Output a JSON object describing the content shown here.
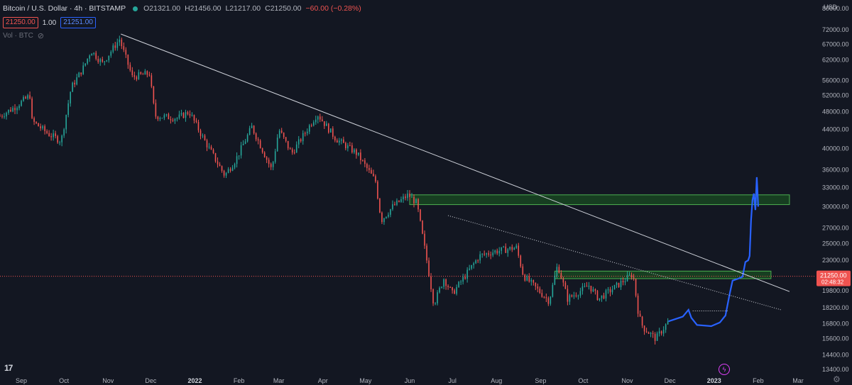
{
  "header": {
    "symbol": "Bitcoin / U.S. Dollar · 4h · BITSTAMP",
    "open": "O21321.00",
    "high": "H21456.00",
    "low": "L21217.00",
    "close": "C21250.00",
    "change": "−60.00 (−0.28%)"
  },
  "trade": {
    "sell": "21250.00",
    "spread": "1.00",
    "buy": "21251.00"
  },
  "volume_label": "Vol · BTC",
  "currency": "USD",
  "last_price_label": {
    "price": "21250.00",
    "countdown": "02:48:32"
  },
  "colors": {
    "background": "#131722",
    "up": "#26a69a",
    "down": "#ef5350",
    "projection": "#2962ff",
    "zone_fill": "#1b5e20",
    "zone_border": "#4caf50",
    "trendline": "#d1d4dc",
    "price_line": "#ef5350"
  },
  "icons": {
    "logo": "tradingview-logo",
    "settings": "gear-icon",
    "replay": "lightning-icon",
    "visibility": "eye-off-icon"
  },
  "chart_data": {
    "type": "candlestick",
    "y_scale": "log",
    "ylim": [
      13400,
      80000
    ],
    "y_ticks": [
      80000,
      72000,
      67000,
      62000,
      56000,
      52000,
      48000,
      44000,
      40000,
      36000,
      33000,
      30000,
      27000,
      25000,
      23000,
      19800,
      18200,
      16800,
      15600,
      14400,
      13400
    ],
    "y_tick_labels": [
      "80000.00",
      "72000.00",
      "67000.00",
      "62000.00",
      "56000.00",
      "52000.00",
      "48000.00",
      "44000.00",
      "40000.00",
      "36000.00",
      "33000.00",
      "30000.00",
      "27000.00",
      "25000.00",
      "23000.00",
      "19800.00",
      "18200.00",
      "16800.00",
      "15600.00",
      "14400.00",
      "13400.00"
    ],
    "x_ticks": [
      {
        "label": "Sep",
        "date": "2021-09-01"
      },
      {
        "label": "Oct",
        "date": "2021-10-01"
      },
      {
        "label": "Nov",
        "date": "2021-11-01"
      },
      {
        "label": "Dec",
        "date": "2021-12-01"
      },
      {
        "label": "2022",
        "date": "2022-01-01"
      },
      {
        "label": "Feb",
        "date": "2022-02-01"
      },
      {
        "label": "Mar",
        "date": "2022-03-01"
      },
      {
        "label": "Apr",
        "date": "2022-04-01"
      },
      {
        "label": "May",
        "date": "2022-05-01"
      },
      {
        "label": "Jun",
        "date": "2022-06-01"
      },
      {
        "label": "Jul",
        "date": "2022-07-01"
      },
      {
        "label": "Aug",
        "date": "2022-08-01"
      },
      {
        "label": "Sep",
        "date": "2022-09-01"
      },
      {
        "label": "Oct",
        "date": "2022-10-01"
      },
      {
        "label": "Nov",
        "date": "2022-11-01"
      },
      {
        "label": "Dec",
        "date": "2022-12-01"
      },
      {
        "label": "2023",
        "date": "2023-01-01"
      },
      {
        "label": "Feb",
        "date": "2023-02-01"
      },
      {
        "label": "Mar",
        "date": "2023-03-01"
      }
    ],
    "xlim": [
      "2021-08-17",
      "2023-03-13"
    ],
    "price_path": [
      [
        "2021-08-17",
        47000
      ],
      [
        "2021-08-27",
        49000
      ],
      [
        "2021-09-07",
        52000
      ],
      [
        "2021-09-08",
        46000
      ],
      [
        "2021-09-20",
        43000
      ],
      [
        "2021-09-29",
        41500
      ],
      [
        "2021-10-06",
        54000
      ],
      [
        "2021-10-15",
        60000
      ],
      [
        "2021-10-20",
        65000
      ],
      [
        "2021-10-28",
        61000
      ],
      [
        "2021-11-09",
        68700
      ],
      [
        "2021-11-18",
        57000
      ],
      [
        "2021-11-30",
        58000
      ],
      [
        "2021-12-04",
        47000
      ],
      [
        "2021-12-20",
        46500
      ],
      [
        "2021-12-28",
        48000
      ],
      [
        "2022-01-07",
        42000
      ],
      [
        "2022-01-22",
        35000
      ],
      [
        "2022-01-30",
        38000
      ],
      [
        "2022-02-10",
        44500
      ],
      [
        "2022-02-24",
        36000
      ],
      [
        "2022-03-01",
        44000
      ],
      [
        "2022-03-10",
        39000
      ],
      [
        "2022-03-28",
        47500
      ],
      [
        "2022-04-10",
        42000
      ],
      [
        "2022-04-25",
        39000
      ],
      [
        "2022-05-08",
        34000
      ],
      [
        "2022-05-12",
        28000
      ],
      [
        "2022-05-20",
        30000
      ],
      [
        "2022-05-31",
        31800
      ],
      [
        "2022-06-06",
        30500
      ],
      [
        "2022-06-13",
        23000
      ],
      [
        "2022-06-18",
        18500
      ],
      [
        "2022-06-25",
        21000
      ],
      [
        "2022-07-01",
        19500
      ],
      [
        "2022-07-20",
        23500
      ],
      [
        "2022-07-30",
        24000
      ],
      [
        "2022-08-15",
        24500
      ],
      [
        "2022-08-20",
        21300
      ],
      [
        "2022-09-07",
        18800
      ],
      [
        "2022-09-13",
        22500
      ],
      [
        "2022-09-20",
        19000
      ],
      [
        "2022-10-05",
        20300
      ],
      [
        "2022-10-12",
        19000
      ],
      [
        "2022-11-05",
        21500
      ],
      [
        "2022-11-09",
        17500
      ],
      [
        "2022-11-12",
        16500
      ],
      [
        "2022-11-21",
        15600
      ],
      [
        "2022-11-30",
        17000
      ]
    ],
    "projection_path": [
      [
        "2022-11-30",
        17000
      ],
      [
        "2022-12-10",
        17400
      ],
      [
        "2022-12-14",
        18000
      ],
      [
        "2022-12-16",
        17300
      ],
      [
        "2022-12-20",
        16700
      ],
      [
        "2022-12-30",
        16600
      ],
      [
        "2023-01-05",
        16900
      ],
      [
        "2023-01-09",
        17500
      ],
      [
        "2023-01-12",
        19500
      ],
      [
        "2023-01-14",
        20800
      ],
      [
        "2023-01-18",
        21000
      ],
      [
        "2023-01-21",
        21200
      ],
      [
        "2023-01-23",
        22800
      ],
      [
        "2023-01-25",
        23000
      ],
      [
        "2023-01-26",
        23500
      ],
      [
        "2023-01-27",
        28000
      ],
      [
        "2023-01-28",
        31000
      ],
      [
        "2023-01-29",
        32000
      ],
      [
        "2023-01-30",
        29500
      ],
      [
        "2023-01-31",
        34700
      ],
      [
        "2023-02-01",
        30000
      ]
    ],
    "trendlines": [
      {
        "style": "solid",
        "from": [
          "2021-11-10",
          70500
        ],
        "to": [
          "2023-02-23",
          19700
        ]
      },
      {
        "style": "dotted",
        "from": [
          "2022-06-28",
          28700
        ],
        "to": [
          "2023-02-17",
          18000
        ]
      }
    ],
    "zones": [
      {
        "from": "2022-06-01",
        "to": "2023-02-23",
        "low": 30300,
        "high": 31800
      },
      {
        "from": "2022-09-11",
        "to": "2023-02-10",
        "low": 21000,
        "high": 21800
      }
    ],
    "current_price": 21250
  }
}
